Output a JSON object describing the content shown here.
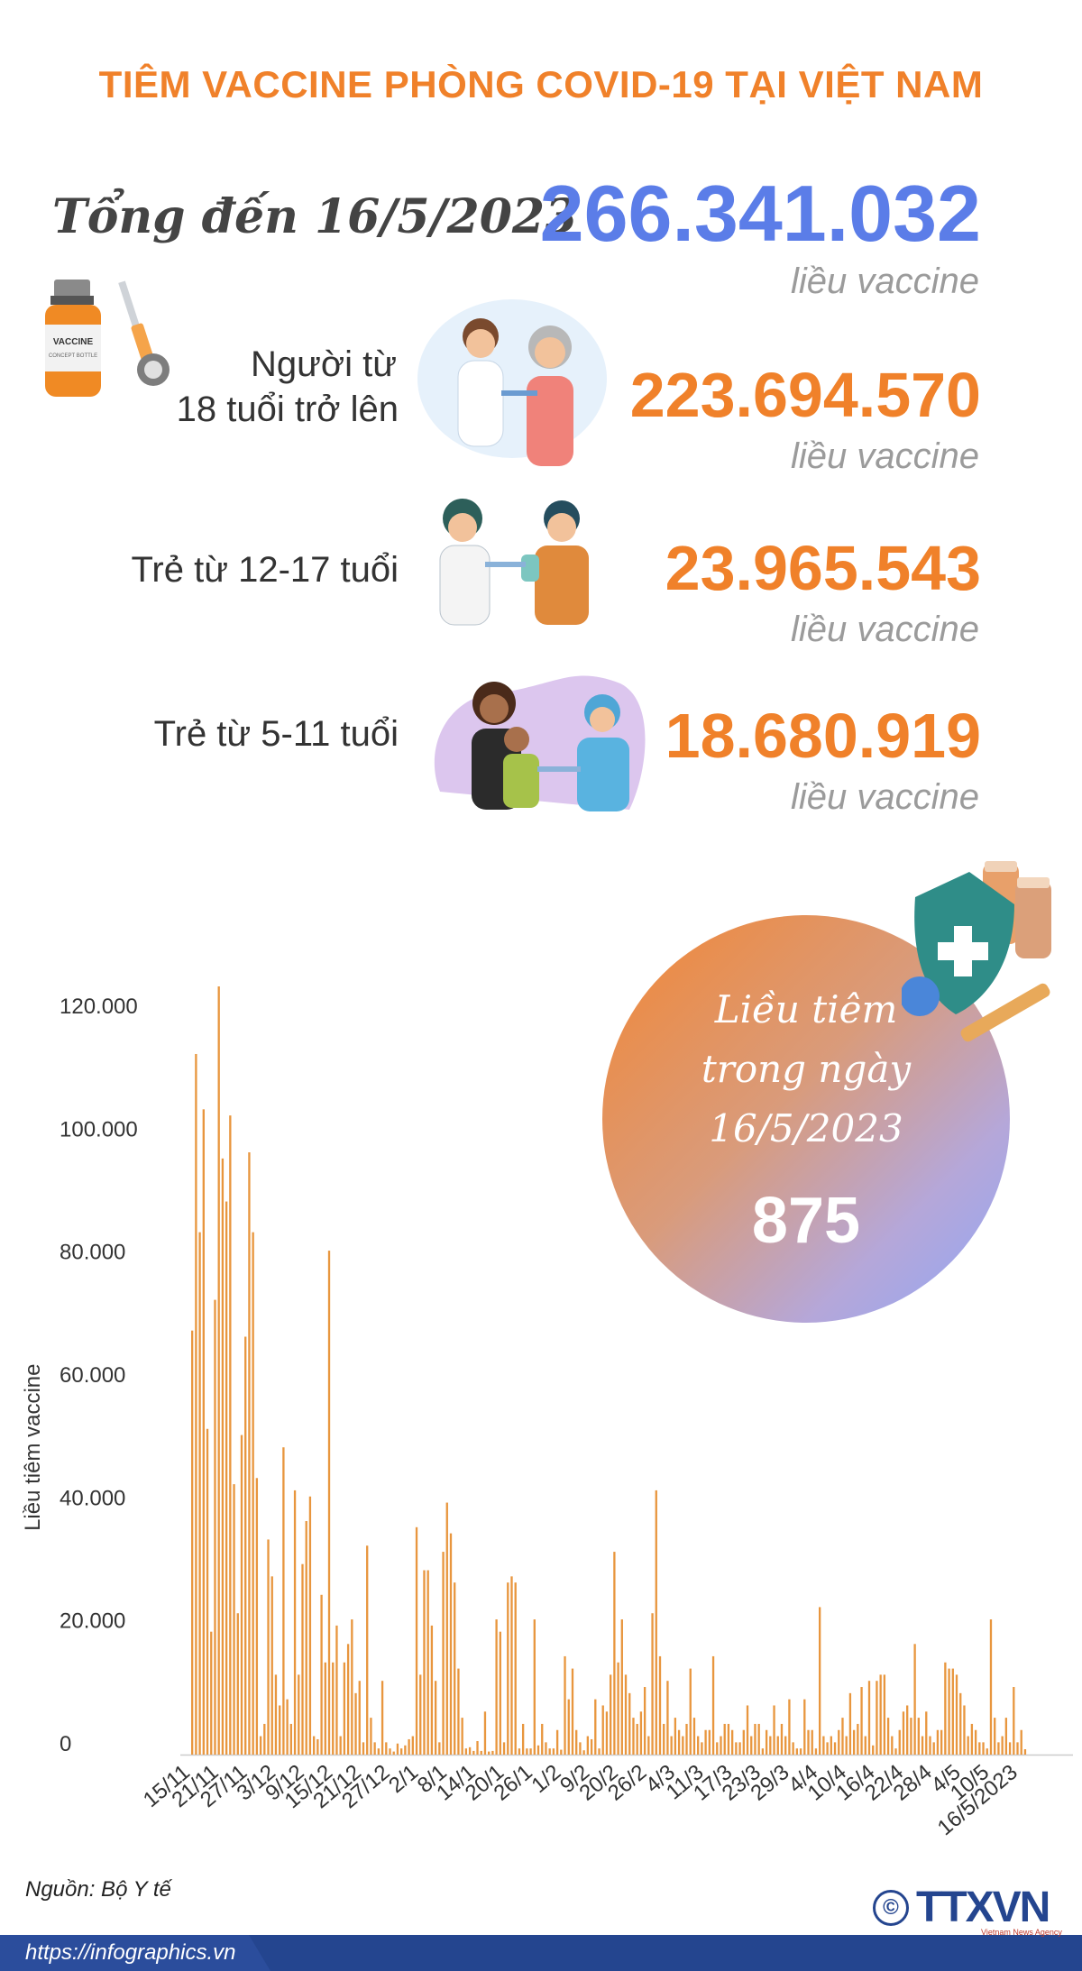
{
  "title": "TIÊM VACCINE PHÒNG COVID-19 TẠI VIỆT NAM",
  "total": {
    "label": "Tổng đến 16/5/2023",
    "value": "266.341.032",
    "unit": "liều vaccine"
  },
  "groups": [
    {
      "label_line1": "Người từ",
      "label_line2": "18 tuổi trở lên",
      "value": "223.694.570",
      "unit": "liều vaccine"
    },
    {
      "label": "Trẻ từ 12-17 tuổi",
      "value": "23.965.543",
      "unit": "liều vaccine"
    },
    {
      "label": "Trẻ từ 5-11 tuổi",
      "value": "18.680.919",
      "unit": "liều vaccine"
    }
  ],
  "vaccine_bottle": {
    "label_line1": "VACCINE",
    "label_line2": "CONCEPT BOTTLE"
  },
  "highlight": {
    "line1": "Liều tiêm",
    "line2": "trong ngày",
    "line3": "16/5/2023",
    "value": "875"
  },
  "colors": {
    "accent": "#f0812a",
    "total": "#5b7de8",
    "bar": "#e8963e",
    "footer": "#24458f"
  },
  "chart_data": {
    "type": "bar",
    "ylabel": "Liều tiêm vaccine",
    "ylim": [
      0,
      125000
    ],
    "yticks": [
      "0",
      "20.000",
      "40.000",
      "60.000",
      "80.000",
      "100.000",
      "120.000"
    ],
    "xticks": [
      "15/11",
      "21/11",
      "27/11",
      "3/12",
      "9/12",
      "15/12",
      "21/12",
      "27/12",
      "2/1",
      "8/1",
      "14/1",
      "20/1",
      "26/1",
      "1/2",
      "9/2",
      "20/2",
      "26/2",
      "4/3",
      "11/3",
      "17/3",
      "23/3",
      "29/3",
      "4/4",
      "10/4",
      "16/4",
      "22/4",
      "28/4",
      "4/5",
      "10/5",
      "16/5/2023"
    ],
    "values": [
      69000,
      114000,
      85000,
      105000,
      53000,
      20000,
      74000,
      125000,
      97000,
      90000,
      104000,
      44000,
      23000,
      52000,
      68000,
      98000,
      85000,
      45000,
      3000,
      5000,
      35000,
      29000,
      13000,
      8000,
      50000,
      9000,
      5000,
      43000,
      13000,
      31000,
      38000,
      42000,
      3000,
      2500,
      26000,
      15000,
      82000,
      15000,
      21000,
      3000,
      15000,
      18000,
      22000,
      10000,
      12000,
      2000,
      34000,
      6000,
      2000,
      1000,
      12000,
      2000,
      1000,
      500,
      1800,
      1000,
      1500,
      2500,
      3000,
      37000,
      13000,
      30000,
      30000,
      21000,
      12000,
      2000,
      33000,
      41000,
      36000,
      28000,
      14000,
      6000,
      1000,
      1200,
      600,
      2200,
      600,
      7000,
      500,
      600,
      22000,
      20000,
      2000,
      28000,
      29000,
      28000,
      1000,
      5000,
      1000,
      1000,
      22000,
      1500,
      5000,
      2000,
      1000,
      1000,
      4000,
      800,
      16000,
      9000,
      14000,
      4000,
      2000,
      700,
      3000,
      2500,
      9000,
      1000,
      8000,
      7000,
      13000,
      33000,
      15000,
      22000,
      13000,
      10000,
      6000,
      5000,
      7000,
      11000,
      3000,
      23000,
      43000,
      16000,
      5000,
      12000,
      3000,
      6000,
      4000,
      3000,
      5000,
      14000,
      6000,
      3000,
      2000,
      4000,
      4000,
      16000,
      2000,
      3000,
      5000,
      5000,
      4000,
      2000,
      2000,
      4000,
      8000,
      3000,
      5000,
      5000,
      1000,
      4000,
      3000,
      8000,
      3000,
      5000,
      3000,
      9000,
      2000,
      1000,
      1000,
      9000,
      4000,
      4000,
      1000,
      24000,
      3000,
      2000,
      3000,
      2000,
      4000,
      6000,
      3000,
      10000,
      4000,
      5000,
      11000,
      3000,
      12000,
      1500,
      12000,
      13000,
      13000,
      6000,
      3000,
      1000,
      4000,
      7000,
      8000,
      6000,
      18000,
      6000,
      3000,
      7000,
      3000,
      2000,
      4000,
      4000,
      15000,
      14000,
      14000,
      13000,
      10000,
      8000,
      3000,
      5000,
      4000,
      2000,
      2000,
      1000,
      22000,
      6000,
      2000,
      3000,
      6000,
      2000,
      11000,
      2000,
      4000,
      875
    ]
  },
  "source": "Nguồn: Bộ Y tế",
  "footer": {
    "url": "https://infographics.vn",
    "logo": "TTXVN",
    "logo_sub": "Vietnam News Agency",
    "copyright": "©"
  }
}
